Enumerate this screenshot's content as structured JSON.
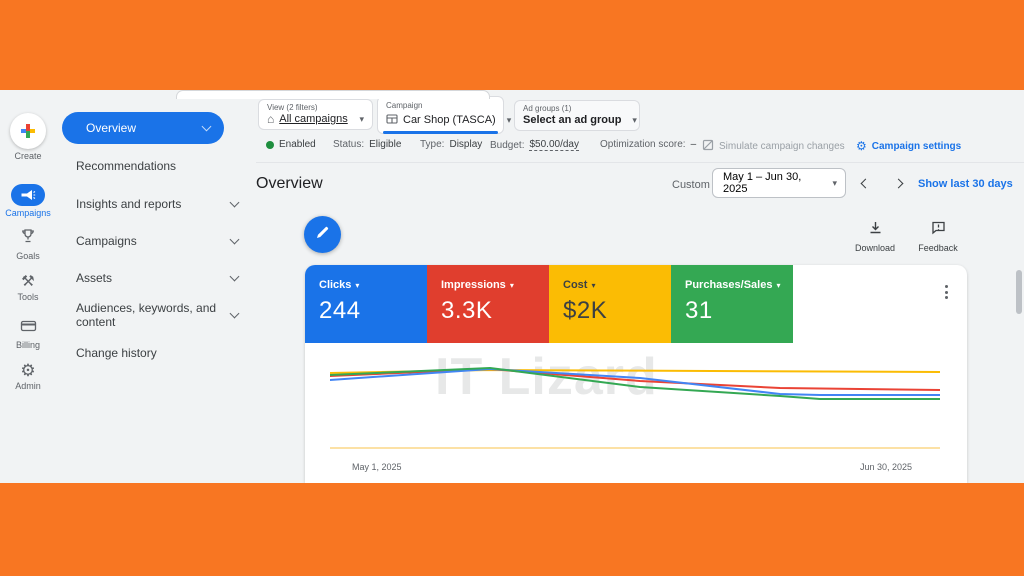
{
  "app": {
    "watermark": "IT Lizard"
  },
  "left_rail": {
    "items": [
      {
        "label": "Create"
      },
      {
        "label": "Campaigns"
      },
      {
        "label": "Goals"
      },
      {
        "label": "Tools"
      },
      {
        "label": "Billing"
      },
      {
        "label": "Admin"
      }
    ]
  },
  "side_nav": {
    "items": [
      {
        "label": "Overview"
      },
      {
        "label": "Recommendations"
      },
      {
        "label": "Insights and reports"
      },
      {
        "label": "Campaigns"
      },
      {
        "label": "Assets"
      },
      {
        "label": "Audiences, keywords, and content"
      },
      {
        "label": "Change history"
      }
    ]
  },
  "filter_bar": {
    "view": {
      "label": "View (2 filters)",
      "value": "All campaigns"
    },
    "campaign": {
      "label": "Campaign",
      "value": "Car Shop (TASCA)"
    },
    "ad_groups": {
      "label": "Ad groups (1)",
      "value": "Select an ad group"
    }
  },
  "status_bar": {
    "enabled": "Enabled",
    "status_label": "Status:",
    "status_value": "Eligible",
    "type_label": "Type:",
    "type_value": "Display",
    "budget_label": "Budget:",
    "budget_value": "$50.00/day",
    "optimization_label": "Optimization score:",
    "optimization_value": "–",
    "simulate": "Simulate campaign changes",
    "settings": "Campaign settings"
  },
  "overview": {
    "title": "Overview",
    "custom": "Custom",
    "date_range": "May 1 – Jun 30, 2025",
    "show_last": "Show last 30 days",
    "download": "Download",
    "feedback": "Feedback"
  },
  "metrics": [
    {
      "label": "Clicks",
      "value": "244",
      "color": "#1A73E8",
      "text_color": "#FFFFFF"
    },
    {
      "label": "Impressions",
      "value": "3.3K",
      "color": "#E03E2E",
      "text_color": "#FFFFFF"
    },
    {
      "label": "Cost",
      "value": "$2K",
      "color": "#FBBC04",
      "text_color": "#3C4043"
    },
    {
      "label": "Purchases/Sales",
      "value": "31",
      "color": "#34A853",
      "text_color": "#FFFFFF"
    }
  ],
  "chart_data": {
    "type": "line",
    "x_start_label": "May 1, 2025",
    "x_end_label": "Jun 30, 2025",
    "grid": "off",
    "legend_position": "none",
    "y_axis": "unlabeled",
    "series": [
      {
        "name": "Cost",
        "color": "#FBBC04",
        "points": [
          [
            0,
            18
          ],
          [
            160,
            15
          ],
          [
            610,
            17
          ]
        ]
      },
      {
        "name": "Impressions",
        "color": "#EA4335",
        "points": [
          [
            0,
            21
          ],
          [
            160,
            14
          ],
          [
            310,
            26
          ],
          [
            450,
            33
          ],
          [
            610,
            35
          ]
        ]
      },
      {
        "name": "Clicks",
        "color": "#4285F4",
        "points": [
          [
            0,
            25
          ],
          [
            160,
            14
          ],
          [
            310,
            23
          ],
          [
            450,
            39
          ],
          [
            490,
            40
          ],
          [
            610,
            40
          ]
        ]
      },
      {
        "name": "Purchases/Sales",
        "color": "#34A853",
        "points": [
          [
            0,
            20
          ],
          [
            160,
            13
          ],
          [
            310,
            32
          ],
          [
            450,
            41
          ],
          [
            490,
            44
          ],
          [
            610,
            44
          ]
        ]
      }
    ],
    "baseline": {
      "y": 93,
      "color": "#F9AB00"
    }
  }
}
